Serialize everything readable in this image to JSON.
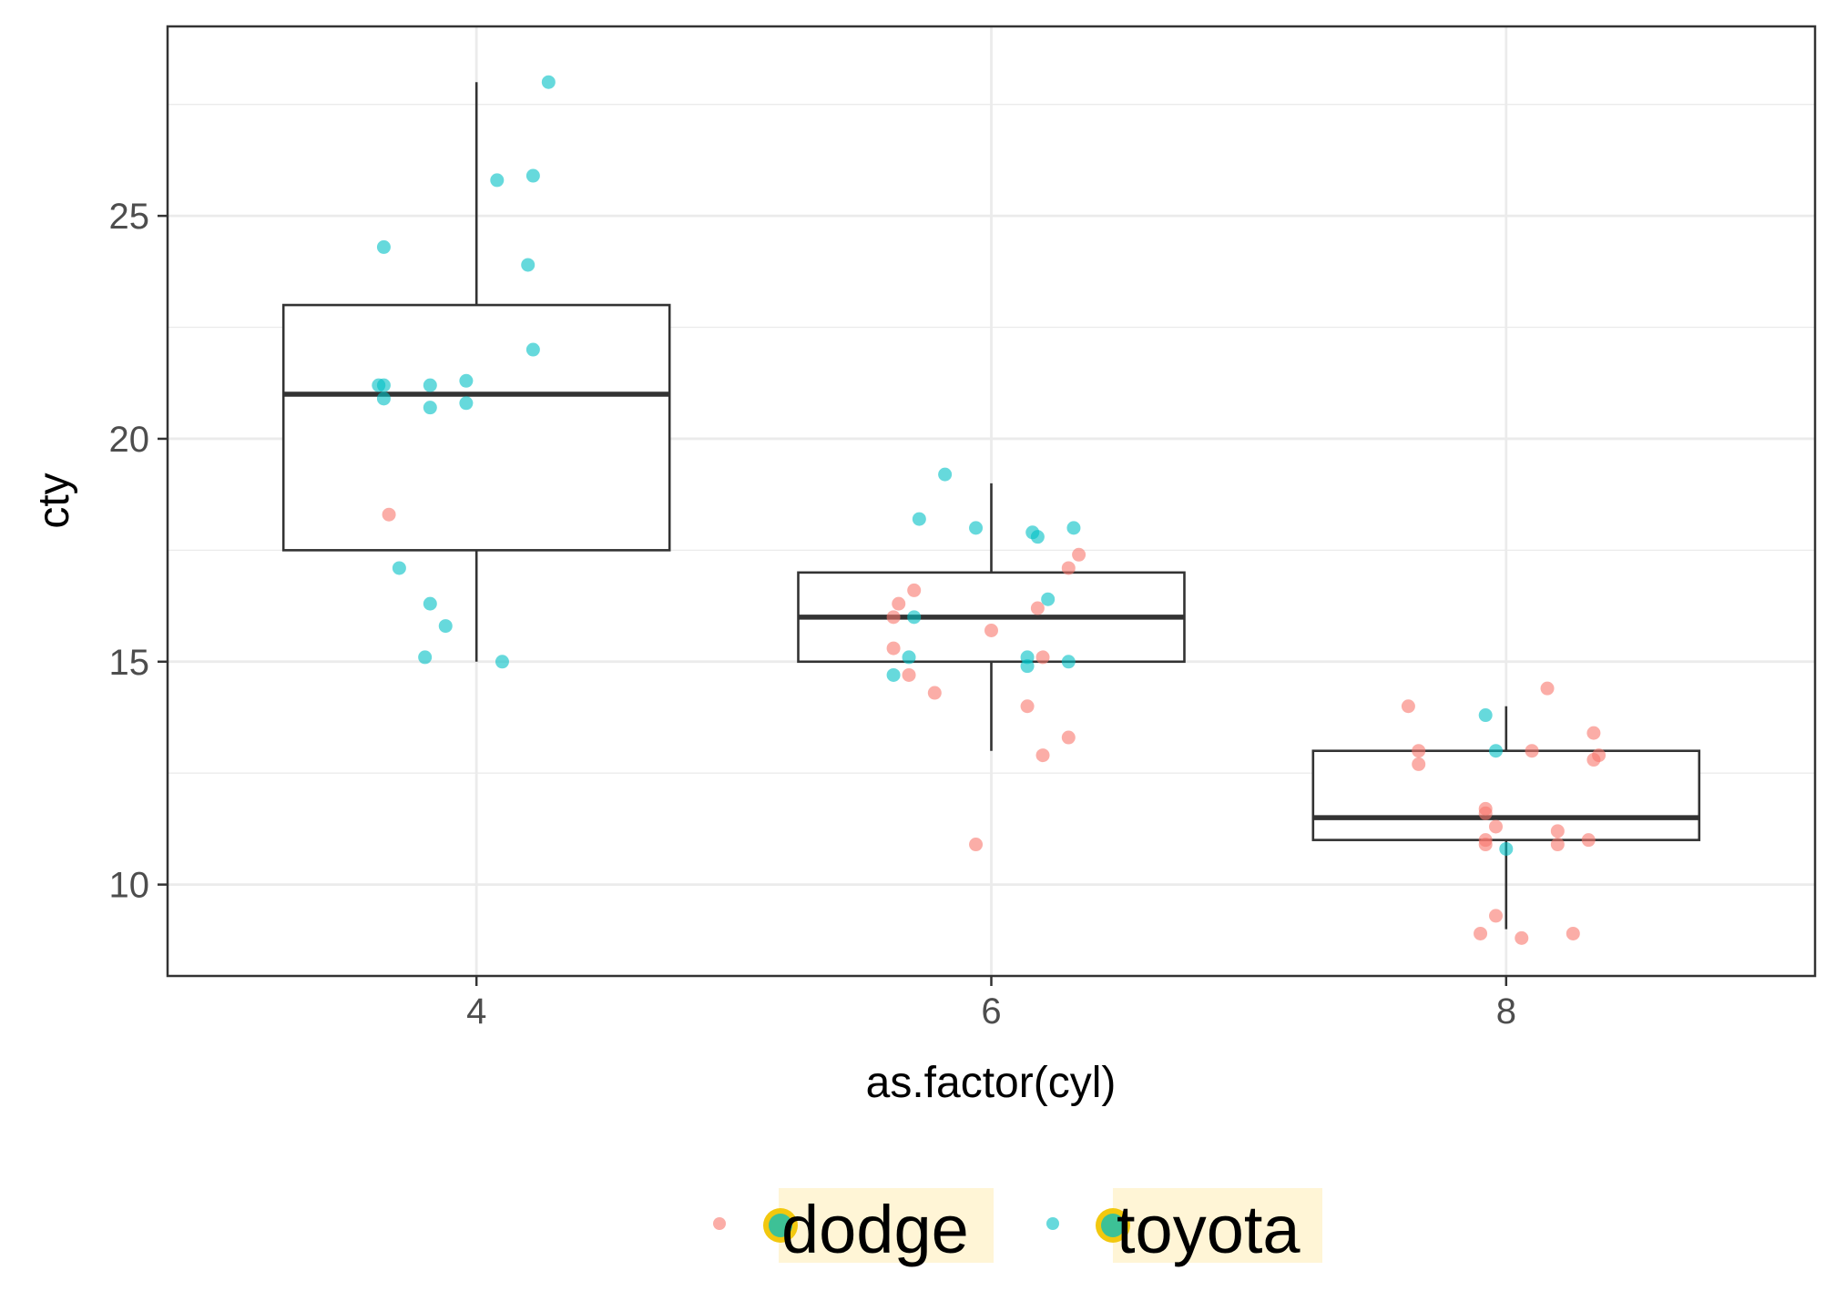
{
  "colors": {
    "dodge": "#F8766D",
    "toyota": "#00BFC4",
    "legend_highlight_bg": "#FFF5D6",
    "legend_ring": "#F2C80F",
    "panel_border": "#333333",
    "grid": "#EBEBEB"
  },
  "chart_data": {
    "type": "boxplot",
    "xlabel": "as.factor(cyl)",
    "ylabel": "cty",
    "categories": [
      "4",
      "6",
      "8"
    ],
    "ylim": [
      7.95,
      29.25
    ],
    "y_ticks": [
      10,
      15,
      20,
      25
    ],
    "grid": true,
    "legend_position": "bottom",
    "boxes": [
      {
        "category": "4",
        "lower_whisker": 15,
        "q1": 17.5,
        "median": 21,
        "q3": 23,
        "upper_whisker": 28
      },
      {
        "category": "6",
        "lower_whisker": 13,
        "q1": 15,
        "median": 16,
        "q3": 17,
        "upper_whisker": 19
      },
      {
        "category": "8",
        "lower_whisker": 9,
        "q1": 11,
        "median": 11.5,
        "q3": 13,
        "upper_whisker": 14
      }
    ],
    "series": [
      {
        "name": "dodge",
        "points": [
          {
            "x": "4",
            "xj": -0.17,
            "y": 18.3
          },
          {
            "x": "6",
            "xj": -0.19,
            "y": 16.0
          },
          {
            "x": "6",
            "xj": -0.18,
            "y": 16.3
          },
          {
            "x": "6",
            "xj": -0.15,
            "y": 16.6
          },
          {
            "x": "6",
            "xj": -0.19,
            "y": 15.3
          },
          {
            "x": "6",
            "xj": -0.16,
            "y": 14.7
          },
          {
            "x": "6",
            "xj": -0.11,
            "y": 14.3
          },
          {
            "x": "6",
            "xj": 0.0,
            "y": 15.7
          },
          {
            "x": "6",
            "xj": 0.09,
            "y": 16.2
          },
          {
            "x": "6",
            "xj": 0.1,
            "y": 15.1
          },
          {
            "x": "6",
            "xj": 0.15,
            "y": 17.1
          },
          {
            "x": "6",
            "xj": 0.17,
            "y": 17.4
          },
          {
            "x": "6",
            "xj": 0.07,
            "y": 14.0
          },
          {
            "x": "6",
            "xj": 0.15,
            "y": 13.3
          },
          {
            "x": "6",
            "xj": 0.1,
            "y": 12.9
          },
          {
            "x": "6",
            "xj": -0.03,
            "y": 10.9
          },
          {
            "x": "8",
            "xj": -0.19,
            "y": 14.0
          },
          {
            "x": "8",
            "xj": -0.17,
            "y": 13.0
          },
          {
            "x": "8",
            "xj": -0.17,
            "y": 12.7
          },
          {
            "x": "8",
            "xj": -0.04,
            "y": 11.7
          },
          {
            "x": "8",
            "xj": -0.04,
            "y": 11.6
          },
          {
            "x": "8",
            "xj": -0.02,
            "y": 11.3
          },
          {
            "x": "8",
            "xj": -0.04,
            "y": 10.9
          },
          {
            "x": "8",
            "xj": -0.04,
            "y": 11.0
          },
          {
            "x": "8",
            "xj": -0.02,
            "y": 9.3
          },
          {
            "x": "8",
            "xj": -0.05,
            "y": 8.9
          },
          {
            "x": "8",
            "xj": 0.03,
            "y": 8.8
          },
          {
            "x": "8",
            "xj": 0.13,
            "y": 8.9
          },
          {
            "x": "8",
            "xj": 0.08,
            "y": 14.4
          },
          {
            "x": "8",
            "xj": 0.05,
            "y": 13.0
          },
          {
            "x": "8",
            "xj": 0.17,
            "y": 13.4
          },
          {
            "x": "8",
            "xj": 0.18,
            "y": 12.9
          },
          {
            "x": "8",
            "xj": 0.17,
            "y": 12.8
          },
          {
            "x": "8",
            "xj": 0.1,
            "y": 11.2
          },
          {
            "x": "8",
            "xj": 0.16,
            "y": 11.0
          },
          {
            "x": "8",
            "xj": 0.1,
            "y": 10.9
          }
        ]
      },
      {
        "name": "toyota",
        "points": [
          {
            "x": "4",
            "xj": 0.14,
            "y": 28.0
          },
          {
            "x": "4",
            "xj": 0.04,
            "y": 25.8
          },
          {
            "x": "4",
            "xj": 0.11,
            "y": 25.9
          },
          {
            "x": "4",
            "xj": -0.18,
            "y": 24.3
          },
          {
            "x": "4",
            "xj": 0.1,
            "y": 23.9
          },
          {
            "x": "4",
            "xj": 0.11,
            "y": 22.0
          },
          {
            "x": "4",
            "xj": -0.19,
            "y": 21.2
          },
          {
            "x": "4",
            "xj": -0.18,
            "y": 21.2
          },
          {
            "x": "4",
            "xj": -0.18,
            "y": 20.9
          },
          {
            "x": "4",
            "xj": -0.09,
            "y": 21.2
          },
          {
            "x": "4",
            "xj": -0.09,
            "y": 20.7
          },
          {
            "x": "4",
            "xj": -0.02,
            "y": 21.3
          },
          {
            "x": "4",
            "xj": -0.02,
            "y": 20.8
          },
          {
            "x": "4",
            "xj": -0.15,
            "y": 17.1
          },
          {
            "x": "4",
            "xj": -0.09,
            "y": 16.3
          },
          {
            "x": "4",
            "xj": -0.06,
            "y": 15.8
          },
          {
            "x": "4",
            "xj": -0.1,
            "y": 15.1
          },
          {
            "x": "4",
            "xj": 0.05,
            "y": 15.0
          },
          {
            "x": "6",
            "xj": -0.09,
            "y": 19.2
          },
          {
            "x": "6",
            "xj": -0.14,
            "y": 18.2
          },
          {
            "x": "6",
            "xj": -0.03,
            "y": 18.0
          },
          {
            "x": "6",
            "xj": 0.08,
            "y": 17.9
          },
          {
            "x": "6",
            "xj": 0.09,
            "y": 17.8
          },
          {
            "x": "6",
            "xj": 0.16,
            "y": 18.0
          },
          {
            "x": "6",
            "xj": 0.11,
            "y": 16.4
          },
          {
            "x": "6",
            "xj": -0.15,
            "y": 16.0
          },
          {
            "x": "6",
            "xj": -0.16,
            "y": 15.1
          },
          {
            "x": "6",
            "xj": 0.07,
            "y": 15.1
          },
          {
            "x": "6",
            "xj": 0.07,
            "y": 14.9
          },
          {
            "x": "6",
            "xj": 0.15,
            "y": 15.0
          },
          {
            "x": "6",
            "xj": -0.19,
            "y": 14.7
          },
          {
            "x": "8",
            "xj": -0.04,
            "y": 13.8
          },
          {
            "x": "8",
            "xj": -0.02,
            "y": 13.0
          },
          {
            "x": "8",
            "xj": 0.0,
            "y": 10.8
          }
        ]
      }
    ]
  }
}
